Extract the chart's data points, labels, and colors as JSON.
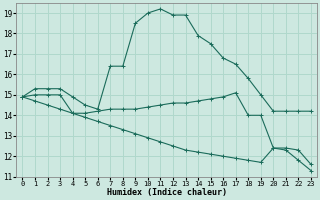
{
  "xlabel": "Humidex (Indice chaleur)",
  "xlim": [
    -0.5,
    23.5
  ],
  "ylim": [
    11,
    19.5
  ],
  "yticks": [
    11,
    12,
    13,
    14,
    15,
    16,
    17,
    18,
    19
  ],
  "xticks": [
    0,
    1,
    2,
    3,
    4,
    5,
    6,
    7,
    8,
    9,
    10,
    11,
    12,
    13,
    14,
    15,
    16,
    17,
    18,
    19,
    20,
    21,
    22,
    23
  ],
  "bg_color": "#cde8e0",
  "grid_color": "#b0d8cc",
  "line_color": "#1a6b5a",
  "lines": [
    {
      "x": [
        0,
        1,
        2,
        3,
        4,
        5,
        6,
        7,
        8,
        9,
        10,
        11,
        12,
        13,
        14,
        15,
        16,
        17,
        18,
        19,
        20,
        21,
        22,
        23
      ],
      "y": [
        14.9,
        15.3,
        15.3,
        15.3,
        14.9,
        14.5,
        14.3,
        16.4,
        16.4,
        18.5,
        19.0,
        19.2,
        18.9,
        18.9,
        17.9,
        17.5,
        16.8,
        16.5,
        15.8,
        15.0,
        14.2,
        14.2,
        14.2,
        14.2
      ],
      "marker": "+"
    },
    {
      "x": [
        0,
        1,
        2,
        3,
        4,
        5,
        6,
        7,
        8,
        9,
        10,
        11,
        12,
        13,
        14,
        15,
        16,
        17,
        18,
        19,
        20,
        21,
        22,
        23
      ],
      "y": [
        14.9,
        15.0,
        15.0,
        15.0,
        14.1,
        14.1,
        14.2,
        14.3,
        14.3,
        14.3,
        14.4,
        14.5,
        14.6,
        14.6,
        14.7,
        14.8,
        14.9,
        15.1,
        14.0,
        14.0,
        12.4,
        12.4,
        12.3,
        11.6
      ],
      "marker": "+"
    },
    {
      "x": [
        0,
        1,
        2,
        3,
        4,
        5,
        6,
        7,
        8,
        9,
        10,
        11,
        12,
        13,
        14,
        15,
        16,
        17,
        18,
        19,
        20,
        21,
        22,
        23
      ],
      "y": [
        14.9,
        14.7,
        14.5,
        14.3,
        14.1,
        13.9,
        13.7,
        13.5,
        13.3,
        13.1,
        12.9,
        12.7,
        12.5,
        12.3,
        12.2,
        12.1,
        12.0,
        11.9,
        11.8,
        11.7,
        12.4,
        12.3,
        11.8,
        11.3
      ],
      "marker": "+"
    }
  ]
}
